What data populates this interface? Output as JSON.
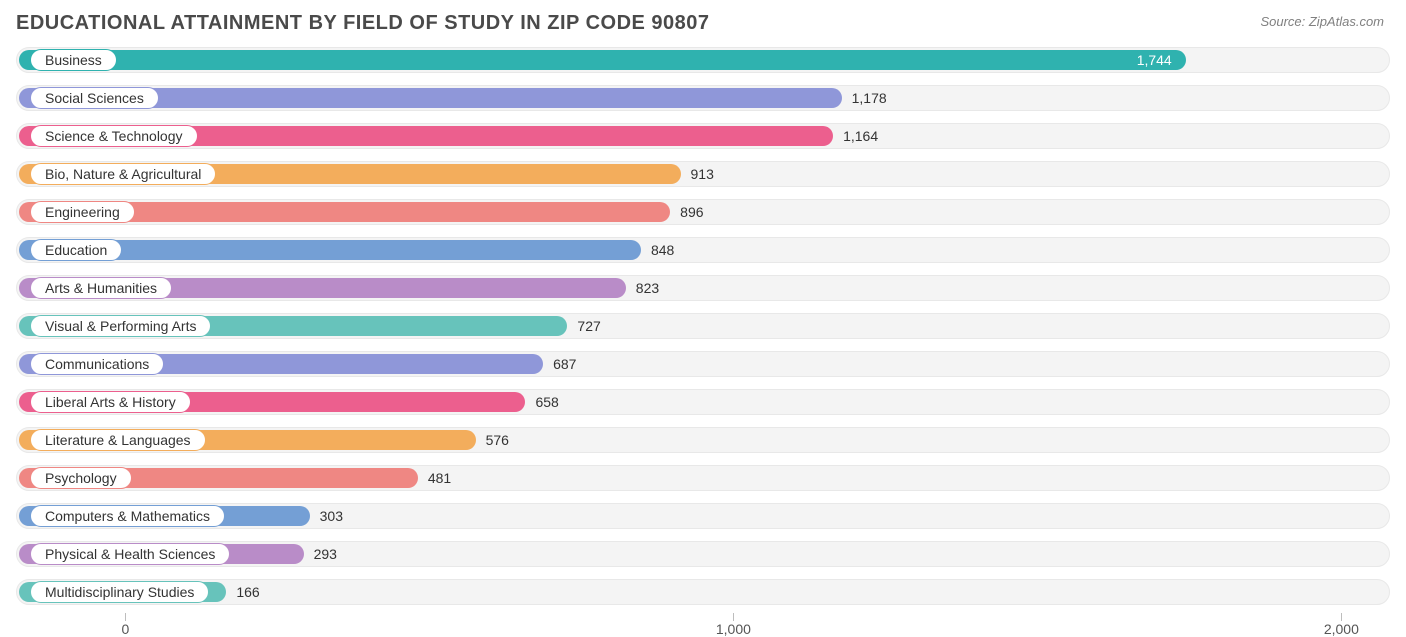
{
  "title": "EDUCATIONAL ATTAINMENT BY FIELD OF STUDY IN ZIP CODE 90807",
  "source": "Source: ZipAtlas.com",
  "chart": {
    "type": "bar",
    "orientation": "horizontal",
    "background_color": "#ffffff",
    "track_color": "#f4f4f4",
    "track_border": "#e8e8e8",
    "title_fontsize": 20,
    "label_fontsize": 14,
    "value_fontsize": 14,
    "pill_bg": "#ffffff",
    "pill_text_color": "#333333",
    "value_text_color": "#333333",
    "bar_radius": 12,
    "xmin": -180,
    "xmax": 2080,
    "ticks": [
      {
        "pos": 0,
        "label": "0"
      },
      {
        "pos": 1000,
        "label": "1,000"
      },
      {
        "pos": 2000,
        "label": "2,000"
      }
    ],
    "bars": [
      {
        "label": "Business",
        "value": 1744,
        "display": "1,744",
        "color": "#2fb2af",
        "value_inside": true
      },
      {
        "label": "Social Sciences",
        "value": 1178,
        "display": "1,178",
        "color": "#8f97d9",
        "value_inside": false
      },
      {
        "label": "Science & Technology",
        "value": 1164,
        "display": "1,164",
        "color": "#ec5f8e",
        "value_inside": false
      },
      {
        "label": "Bio, Nature & Agricultural",
        "value": 913,
        "display": "913",
        "color": "#f3ad5c",
        "value_inside": false
      },
      {
        "label": "Engineering",
        "value": 896,
        "display": "896",
        "color": "#ef8783",
        "value_inside": false
      },
      {
        "label": "Education",
        "value": 848,
        "display": "848",
        "color": "#749fd5",
        "value_inside": false
      },
      {
        "label": "Arts & Humanities",
        "value": 823,
        "display": "823",
        "color": "#b98cc8",
        "value_inside": false
      },
      {
        "label": "Visual & Performing Arts",
        "value": 727,
        "display": "727",
        "color": "#67c3bb",
        "value_inside": false
      },
      {
        "label": "Communications",
        "value": 687,
        "display": "687",
        "color": "#8f97d9",
        "value_inside": false
      },
      {
        "label": "Liberal Arts & History",
        "value": 658,
        "display": "658",
        "color": "#ec5f8e",
        "value_inside": false
      },
      {
        "label": "Literature & Languages",
        "value": 576,
        "display": "576",
        "color": "#f3ad5c",
        "value_inside": false
      },
      {
        "label": "Psychology",
        "value": 481,
        "display": "481",
        "color": "#ef8783",
        "value_inside": false
      },
      {
        "label": "Computers & Mathematics",
        "value": 303,
        "display": "303",
        "color": "#749fd5",
        "value_inside": false
      },
      {
        "label": "Physical & Health Sciences",
        "value": 293,
        "display": "293",
        "color": "#b98cc8",
        "value_inside": false
      },
      {
        "label": "Multidisciplinary Studies",
        "value": 166,
        "display": "166",
        "color": "#67c3bb",
        "value_inside": false
      }
    ]
  }
}
